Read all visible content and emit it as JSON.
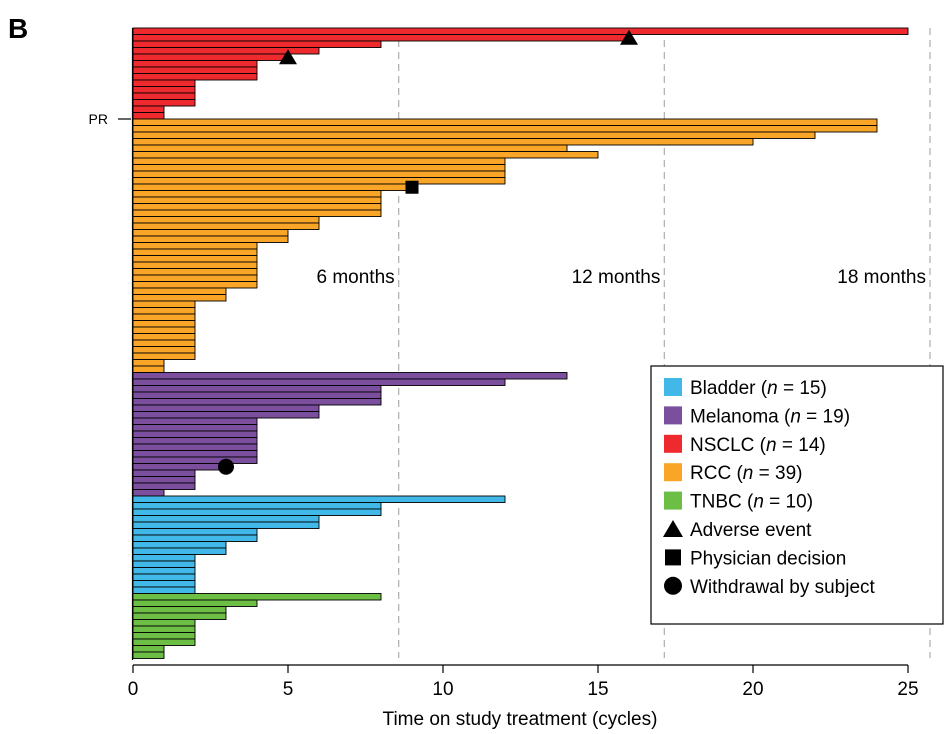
{
  "panel_label": "B",
  "chart_data": {
    "type": "bar",
    "orientation": "horizontal",
    "title": "",
    "xlabel": "Time on study treatment (cycles)",
    "ylabel": "",
    "xlim": [
      0,
      26.3
    ],
    "xticks": [
      0,
      5,
      10,
      15,
      20,
      25
    ],
    "grid": false,
    "legend_placement": "bottom-right",
    "reference_lines": [
      {
        "x": 8.57,
        "label": "6 months"
      },
      {
        "x": 17.14,
        "label": "12 months"
      },
      {
        "x": 25.71,
        "label": "18 months"
      }
    ],
    "row_annotation": {
      "label": "PR",
      "row": 14
    },
    "series": [
      {
        "name": "NSCLC",
        "n": 14,
        "color": "#EE2A2E",
        "values": [
          25,
          16,
          8,
          6,
          5,
          4,
          4,
          4,
          2,
          2,
          2,
          2,
          1,
          1
        ]
      },
      {
        "name": "RCC",
        "n": 39,
        "color": "#F9A527",
        "values": [
          24,
          24,
          22,
          20,
          14,
          15,
          12,
          12,
          12,
          12,
          9,
          8,
          8,
          8,
          8,
          6,
          6,
          5,
          5,
          4,
          4,
          4,
          4,
          4,
          4,
          4,
          3,
          3,
          2,
          2,
          2,
          2,
          2,
          2,
          2,
          2,
          2,
          1,
          1
        ]
      },
      {
        "name": "Melanoma",
        "n": 19,
        "color": "#7B4F9E",
        "values": [
          14,
          12,
          8,
          8,
          8,
          6,
          6,
          4,
          4,
          4,
          4,
          4,
          4,
          4,
          3,
          2,
          2,
          2,
          1
        ]
      },
      {
        "name": "Bladder",
        "n": 15,
        "color": "#42B8E8",
        "values": [
          12,
          8,
          8,
          6,
          6,
          4,
          4,
          3,
          3,
          2,
          2,
          2,
          2,
          2,
          2
        ]
      },
      {
        "name": "TNBC",
        "n": 10,
        "color": "#6CBE45",
        "values": [
          8,
          4,
          3,
          3,
          2,
          2,
          2,
          2,
          1,
          1
        ]
      }
    ],
    "events": [
      {
        "type": "Adverse event",
        "marker": "triangle",
        "series": "NSCLC",
        "row": 1,
        "x": 16
      },
      {
        "type": "Adverse event",
        "marker": "triangle",
        "series": "NSCLC",
        "row": 4,
        "x": 5
      },
      {
        "type": "Physician decision",
        "marker": "square",
        "series": "RCC",
        "row": 10,
        "x": 9
      },
      {
        "type": "Withdrawal by subject",
        "marker": "circle",
        "series": "Melanoma",
        "row": 14,
        "x": 3
      }
    ],
    "legend": [
      {
        "kind": "swatch",
        "color": "#42B8E8",
        "name": "Bladder",
        "n_label": "n",
        "n": "15"
      },
      {
        "kind": "swatch",
        "color": "#7B4F9E",
        "name": "Melanoma",
        "n_label": "n",
        "n": "19"
      },
      {
        "kind": "swatch",
        "color": "#EE2A2E",
        "name": "NSCLC",
        "n_label": "n",
        "n": "14"
      },
      {
        "kind": "swatch",
        "color": "#F9A527",
        "name": "RCC",
        "n_label": "n",
        "n": "39"
      },
      {
        "kind": "swatch",
        "color": "#6CBE45",
        "name": "TNBC",
        "n_label": "n",
        "n": "10"
      },
      {
        "kind": "triangle",
        "name": "Adverse event"
      },
      {
        "kind": "square",
        "name": "Physician decision"
      },
      {
        "kind": "circle",
        "name": "Withdrawal by subject"
      }
    ]
  }
}
